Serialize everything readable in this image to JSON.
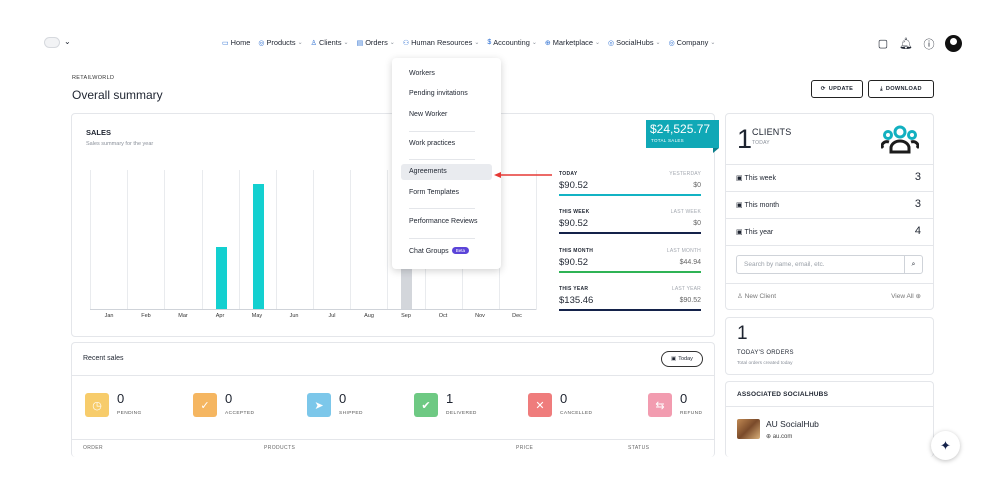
{
  "nav": {
    "items": [
      {
        "label": "Home",
        "icon": "monitor-icon",
        "glyph": "▭",
        "chevron": false
      },
      {
        "label": "Products",
        "icon": "box-icon",
        "glyph": "◎",
        "chevron": true
      },
      {
        "label": "Clients",
        "icon": "users-icon",
        "glyph": "♙",
        "chevron": true
      },
      {
        "label": "Orders",
        "icon": "cart-icon",
        "glyph": "▤",
        "chevron": true
      },
      {
        "label": "Human Resources",
        "icon": "people-icon",
        "glyph": "⚇",
        "chevron": true
      },
      {
        "label": "Accounting",
        "icon": "dollar-icon",
        "glyph": "$",
        "chevron": true
      },
      {
        "label": "Marketplace",
        "icon": "globe-icon",
        "glyph": "⊕",
        "chevron": true
      },
      {
        "label": "SocialHubs",
        "icon": "share-icon",
        "glyph": "◎",
        "chevron": true
      },
      {
        "label": "Company",
        "icon": "building-icon",
        "glyph": "◎",
        "chevron": true
      }
    ]
  },
  "header": {
    "breadcrumb": "RETAILWORLD",
    "title": "Overall summary",
    "update_label": "UPDATE",
    "download_label": "DOWNLOAD"
  },
  "sales": {
    "title": "SALES",
    "subtitle": "Sales summary for the year",
    "total_amount": "$24,525.77",
    "total_label": "TOTAL SALES"
  },
  "chart_data": {
    "type": "bar",
    "categories": [
      "Jan",
      "Feb",
      "Mar",
      "Apr",
      "May",
      "Jun",
      "Jul",
      "Aug",
      "Sep",
      "Oct",
      "Nov",
      "Dec"
    ],
    "values": [
      0,
      0,
      0,
      45,
      90.52,
      0,
      0,
      0,
      48,
      0,
      0,
      0
    ],
    "highlight_colors": [
      "#13d0d0",
      "#13d0d0",
      "#13d0d0",
      "#13d0d0",
      "#13d0d0",
      "#13d0d0",
      "#13d0d0",
      "#13d0d0",
      "#d3d6db",
      "#13d0d0",
      "#13d0d0",
      "#13d0d0"
    ],
    "ylim": [
      0,
      100
    ],
    "grid": true
  },
  "stats": [
    {
      "label": "TODAY",
      "value": "$90.52",
      "sublabel": "YESTERDAY",
      "subvalue": "$0",
      "color": "#13b3c4"
    },
    {
      "label": "THIS WEEK",
      "value": "$90.52",
      "sublabel": "LAST WEEK",
      "subvalue": "$0",
      "color": "#14224a"
    },
    {
      "label": "THIS MONTH",
      "value": "$90.52",
      "sublabel": "LAST MONTH",
      "subvalue": "$44.94",
      "color": "#2fb355"
    },
    {
      "label": "THIS YEAR",
      "value": "$135.46",
      "sublabel": "LAST YEAR",
      "subvalue": "$90.52",
      "color": "#14224a"
    }
  ],
  "dropdown": {
    "items": [
      "Workers",
      "Pending invitations",
      "New Worker",
      "Work practices",
      "Agreements",
      "Form Templates",
      "Performance Reviews",
      "Chat Groups"
    ],
    "active_index": 4,
    "beta_label": "Beta"
  },
  "recent": {
    "title": "Recent sales",
    "today_label": "Today",
    "statuses": [
      {
        "count": "0",
        "label": "PENDING",
        "color": "#f7cc6b",
        "glyph": "◷",
        "icon": "clock-icon"
      },
      {
        "count": "0",
        "label": "ACCEPTED",
        "color": "#f5b661",
        "glyph": "✓",
        "icon": "check-icon"
      },
      {
        "count": "0",
        "label": "SHIPPED",
        "color": "#7cc7ea",
        "glyph": "➤",
        "icon": "send-icon"
      },
      {
        "count": "1",
        "label": "DELIVERED",
        "color": "#6ec983",
        "glyph": "✔",
        "icon": "clipboard-check-icon"
      },
      {
        "count": "0",
        "label": "CANCELLED",
        "color": "#ef7c7c",
        "glyph": "✕",
        "icon": "x-icon"
      },
      {
        "count": "0",
        "label": "REFUND",
        "color": "#f29cb0",
        "glyph": "⇆",
        "icon": "refund-icon"
      }
    ],
    "columns": [
      "ORDER",
      "PRODUCTS",
      "PRICE",
      "STATUS"
    ]
  },
  "clients": {
    "count": "1",
    "label": "CLIENTS",
    "sublabel": "TODAY",
    "rows": [
      {
        "label": "This week",
        "value": "3"
      },
      {
        "label": "This month",
        "value": "3"
      },
      {
        "label": "This year",
        "value": "4"
      }
    ],
    "search_placeholder": "Search by name, email, etc.",
    "new_client": "New Client",
    "view_all": "View All"
  },
  "orders": {
    "count": "1",
    "label": "TODAY'S ORDERS",
    "sublabel": "Total orders created today"
  },
  "social": {
    "title": "ASSOCIATED SOCIALHUBS",
    "name": "AU SocialHub",
    "url": "au.com"
  }
}
